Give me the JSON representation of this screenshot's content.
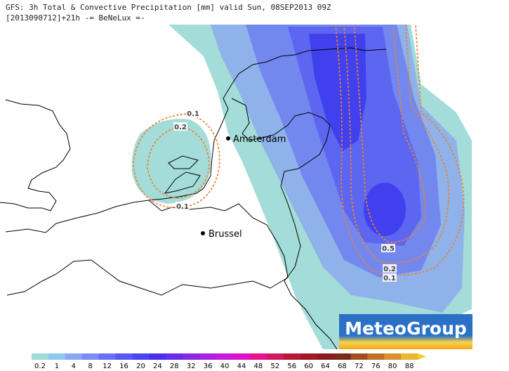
{
  "header": {
    "line1": "GFS: 3h Total & Convective Precipitation [mm] valid Sun, 08SEP2013 09Z",
    "line2": "[2013090712]+21h -= BeNeLux =-"
  },
  "cities": [
    "Amsterdam",
    "Brussel"
  ],
  "contour_labels": [
    "0.1",
    "0.2",
    "0.1",
    "0.5",
    "0.2",
    "0.1"
  ],
  "colorbar": {
    "labels": [
      "0.2",
      "1",
      "4",
      "8",
      "12",
      "16",
      "20",
      "24",
      "28",
      "32",
      "36",
      "40",
      "44",
      "48",
      "52",
      "56",
      "60",
      "64",
      "68",
      "72",
      "76",
      "80",
      "88"
    ]
  },
  "logo": "MeteoGroup"
}
